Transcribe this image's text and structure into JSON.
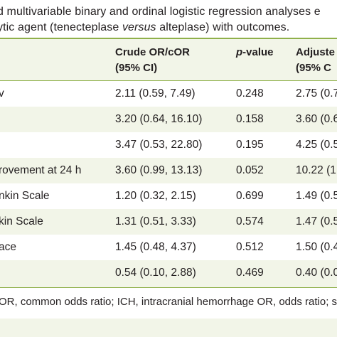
{
  "caption": {
    "line1": "d multivariable binary and ordinal logistic regression analyses e",
    "line2_pre": "ytic agent (tenecteplase ",
    "line2_em": "versus",
    "line2_post": " alteplase) with outcomes."
  },
  "table": {
    "headers": {
      "col1_line1": "Crude OR/cOR",
      "col1_line2": "(95% CI)",
      "col2_em": "p",
      "col2_rest": "-value",
      "col3_line1": "Adjuste",
      "col3_line2": "(95% C"
    },
    "rows": [
      {
        "label": "v",
        "crude": "2.11 (0.59, 7.49)",
        "p": "0.248",
        "adj": "2.75 (0.7"
      },
      {
        "label": "",
        "crude": "3.20 (0.64, 16.10)",
        "p": "0.158",
        "adj": "3.60 (0.6"
      },
      {
        "label": "",
        "crude": "3.47 (0.53, 22.80)",
        "p": "0.195",
        "adj": "4.25 (0.5"
      },
      {
        "label": "rovement at 24 h",
        "crude": "3.60 (0.99, 13.13)",
        "p": "0.052",
        "adj": "10.22 (1."
      },
      {
        "label": "nkin Scale",
        "crude": "1.20 (0.32, 2.15)",
        "p": "0.699",
        "adj": "1.49 (0.5"
      },
      {
        "label": "kin Scale",
        "crude": "1.31 (0.51, 3.33)",
        "p": "0.574",
        "adj": "1.47 (0.5"
      },
      {
        "label": "ace",
        "crude": "1.45 (0.48, 4.37)",
        "p": "0.512",
        "adj": "1.50 (0.4"
      },
      {
        "label": "",
        "crude": "0.54 (0.10, 2.88)",
        "p": "0.469",
        "adj": "0.40 (0.0"
      }
    ]
  },
  "footnote": "OR, common odds ratio; ICH, intracranial hemorrhage OR, odds ratio; s",
  "colors": {
    "accent_rule": "#8fb04a",
    "shaded_row": "#f2f5e8",
    "text": "#231f20"
  }
}
